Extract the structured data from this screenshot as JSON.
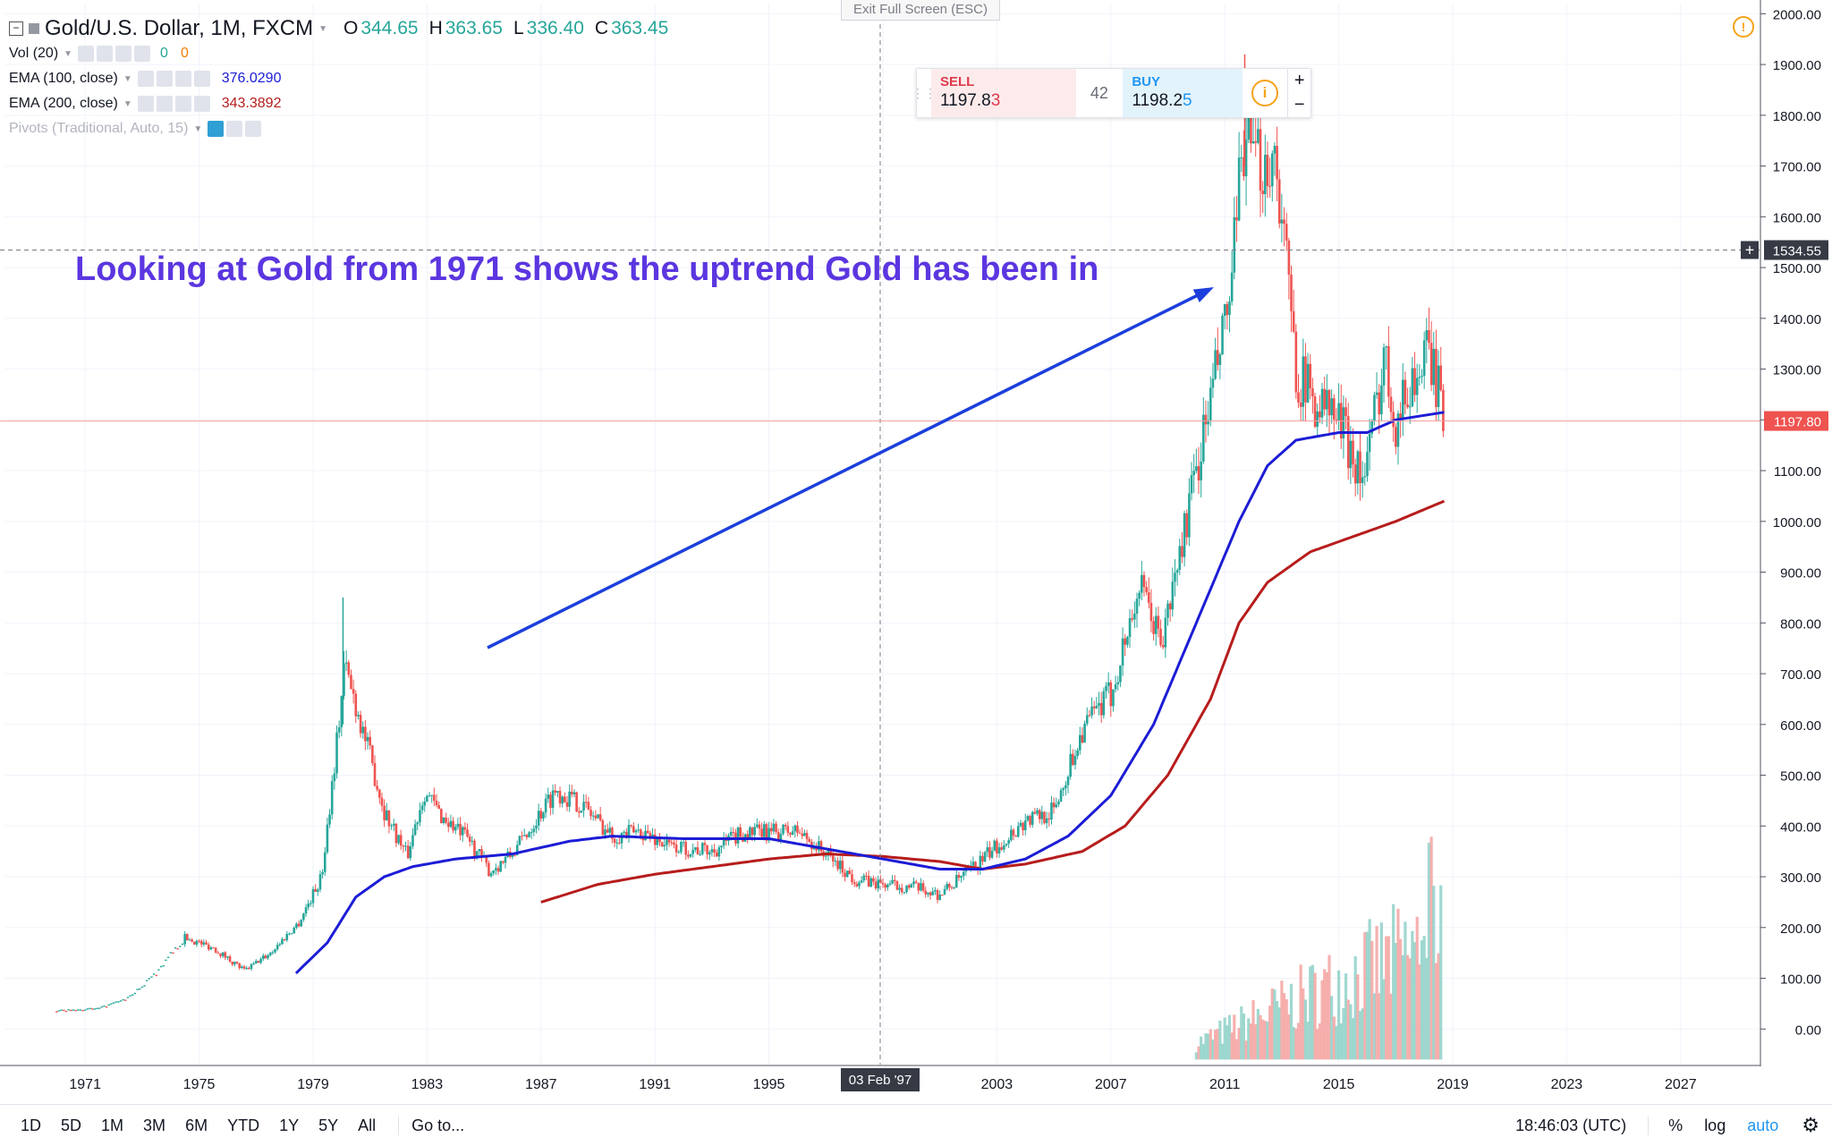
{
  "window": {
    "exit_fullscreen": "Exit Full Screen (ESC)"
  },
  "symbol": {
    "title": "Gold/U.S. Dollar, 1M, FXCM",
    "ohlc": [
      {
        "label": "O",
        "value": "344.65"
      },
      {
        "label": "H",
        "value": "363.65"
      },
      {
        "label": "L",
        "value": "336.40"
      },
      {
        "label": "C",
        "value": "363.45"
      }
    ]
  },
  "indicators": [
    {
      "name": "Vol (20)",
      "values": [
        "0",
        "0"
      ]
    },
    {
      "name": "EMA (100, close)",
      "values": [
        "376.0290"
      ]
    },
    {
      "name": "EMA (200, close)",
      "values": [
        "343.3892"
      ]
    },
    {
      "name": "Pivots (Traditional, Auto, 15)",
      "values": []
    }
  ],
  "trade_panel": {
    "sell_label": "SELL",
    "sell_price_main": "1197.8",
    "sell_price_last": "3",
    "spread": "42",
    "buy_label": "BUY",
    "buy_price_main": "1198.2",
    "buy_price_last": "5",
    "plus": "+",
    "minus": "−"
  },
  "annotation": {
    "text": "Looking at Gold from 1971 shows the uptrend Gold has been in"
  },
  "crosshair": {
    "date_label": "03 Feb '97",
    "price_label": "1534.55"
  },
  "last_price_label": "1197.80",
  "toolbar": {
    "timeframes": [
      "1D",
      "5D",
      "1M",
      "3M",
      "6M",
      "YTD",
      "1Y",
      "5Y",
      "All"
    ],
    "goto": "Go to...",
    "clock": "18:46:03 (UTC)",
    "percent": "%",
    "log": "log",
    "auto": "auto"
  },
  "colors": {
    "up": "#26a69a",
    "down": "#ef5350",
    "ema100": "#1c1cd6",
    "ema200": "#b71c1c",
    "arrow": "#1c3fdc",
    "annotation": "#5b36e0"
  },
  "chart_data": {
    "type": "candlestick",
    "title": "Gold/U.S. Dollar, 1M, FXCM",
    "x_ticks": [
      "1971",
      "1975",
      "1979",
      "1983",
      "1987",
      "1991",
      "1995",
      "1999",
      "2003",
      "2007",
      "2011",
      "2015",
      "2019",
      "2023",
      "2027"
    ],
    "y_ticks": [
      "0.00",
      "100.00",
      "200.00",
      "300.00",
      "400.00",
      "500.00",
      "600.00",
      "700.00",
      "800.00",
      "900.00",
      "1000.00",
      "1100.00",
      "1200.00",
      "1300.00",
      "1400.00",
      "1500.00",
      "1600.00",
      "1700.00",
      "1800.00",
      "1900.00",
      "2000.00"
    ],
    "xlim": [
      1968.2,
      2029.8
    ],
    "ylim": [
      -70,
      2020
    ],
    "grid": true,
    "price_key_points": [
      [
        1970,
        35
      ],
      [
        1971.5,
        40
      ],
      [
        1972.5,
        60
      ],
      [
        1973.5,
        110
      ],
      [
        1974.5,
        180
      ],
      [
        1975.5,
        160
      ],
      [
        1976.6,
        115
      ],
      [
        1977.5,
        150
      ],
      [
        1978.5,
        210
      ],
      [
        1979.3,
        300
      ],
      [
        1979.9,
        600
      ],
      [
        1980.1,
        720
      ],
      [
        1980.6,
        620
      ],
      [
        1981.5,
        430
      ],
      [
        1982.3,
        340
      ],
      [
        1982.9,
        470
      ],
      [
        1983.5,
        420
      ],
      [
        1984.5,
        370
      ],
      [
        1985.2,
        310
      ],
      [
        1986,
        345
      ],
      [
        1987.5,
        470
      ],
      [
        1988.5,
        440
      ],
      [
        1989.5,
        380
      ],
      [
        1990.5,
        390
      ],
      [
        1991.5,
        360
      ],
      [
        1993,
        350
      ],
      [
        1994,
        385
      ],
      [
        1996,
        390
      ],
      [
        1997,
        345
      ],
      [
        1998,
        295
      ],
      [
        1999,
        285
      ],
      [
        2000,
        280
      ],
      [
        2001,
        265
      ],
      [
        2002,
        310
      ],
      [
        2003,
        360
      ],
      [
        2004,
        410
      ],
      [
        2005,
        430
      ],
      [
        2006,
        590
      ],
      [
        2007,
        660
      ],
      [
        2008,
        870
      ],
      [
        2008.8,
        760
      ],
      [
        2009.5,
        960
      ],
      [
        2010.5,
        1240
      ],
      [
        2011.2,
        1440
      ],
      [
        2011.7,
        1780
      ],
      [
        2012,
        1700
      ],
      [
        2012.8,
        1720
      ],
      [
        2013.5,
        1300
      ],
      [
        2014,
        1250
      ],
      [
        2015,
        1200
      ],
      [
        2015.9,
        1080
      ],
      [
        2016.6,
        1330
      ],
      [
        2017,
        1200
      ],
      [
        2017.5,
        1270
      ],
      [
        2018.2,
        1330
      ],
      [
        2018.7,
        1200
      ]
    ],
    "ema100_key_points": [
      [
        1978.4,
        110
      ],
      [
        1979.5,
        170
      ],
      [
        1980.5,
        260
      ],
      [
        1981.5,
        300
      ],
      [
        1982.5,
        320
      ],
      [
        1984,
        335
      ],
      [
        1986,
        345
      ],
      [
        1988,
        370
      ],
      [
        1989.5,
        380
      ],
      [
        1992,
        375
      ],
      [
        1995,
        375
      ],
      [
        1997,
        355
      ],
      [
        1999,
        335
      ],
      [
        2001,
        315
      ],
      [
        2002.5,
        315
      ],
      [
        2004,
        335
      ],
      [
        2005.5,
        380
      ],
      [
        2007,
        460
      ],
      [
        2008.5,
        600
      ],
      [
        2010,
        800
      ],
      [
        2011.5,
        1000
      ],
      [
        2012.5,
        1110
      ],
      [
        2013.5,
        1160
      ],
      [
        2015,
        1175
      ],
      [
        2016,
        1175
      ],
      [
        2017,
        1200
      ],
      [
        2018.7,
        1215
      ]
    ],
    "ema200_key_points": [
      [
        1987,
        250
      ],
      [
        1989,
        285
      ],
      [
        1991,
        305
      ],
      [
        1993,
        320
      ],
      [
        1995,
        335
      ],
      [
        1997,
        345
      ],
      [
        1999,
        340
      ],
      [
        2001,
        330
      ],
      [
        2002.5,
        315
      ],
      [
        2004,
        325
      ],
      [
        2006,
        350
      ],
      [
        2007.5,
        400
      ],
      [
        2009,
        500
      ],
      [
        2010.5,
        650
      ],
      [
        2011.5,
        800
      ],
      [
        2012.5,
        880
      ],
      [
        2014,
        940
      ],
      [
        2015.5,
        970
      ],
      [
        2017,
        1000
      ],
      [
        2018.7,
        1040
      ]
    ],
    "volume_x_range": [
      2010.0,
      2018.7
    ],
    "volume_peak": 450
  }
}
